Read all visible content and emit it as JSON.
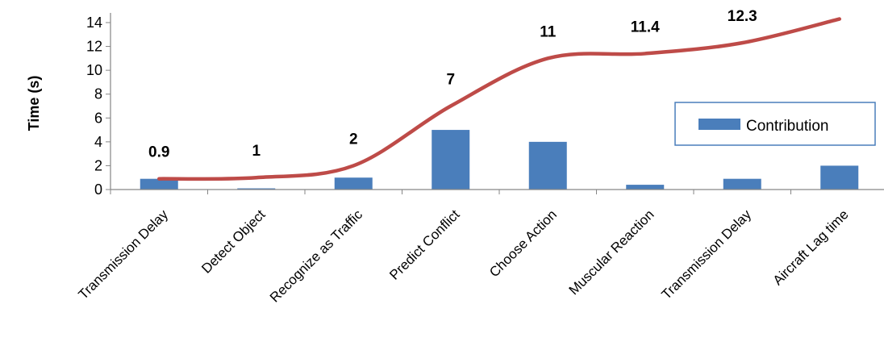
{
  "chart_data": {
    "type": "bar",
    "title": "",
    "xlabel": "",
    "ylabel": "Time (s)",
    "ylim": [
      0,
      14
    ],
    "yticks": [
      0,
      2,
      4,
      6,
      8,
      10,
      12,
      14
    ],
    "categories": [
      "Transmission Delay",
      "Detect Object",
      "Recognize as Traffic",
      "Predict Conflict",
      "Choose Action",
      "Muscular Reaction",
      "Transmission Delay",
      "Aircraft Lag time"
    ],
    "series": [
      {
        "name": "Contribution",
        "type": "bar",
        "color": "#4a7ebb",
        "values": [
          0.9,
          0.1,
          1,
          5,
          4,
          0.4,
          0.9,
          2
        ]
      },
      {
        "type": "line",
        "color": "#be4b48",
        "values": [
          0.9,
          1,
          2,
          7,
          11,
          11.4,
          12.3,
          14.3
        ],
        "data_labels": [
          "0.9",
          "1",
          "2",
          "7",
          "11",
          "11.4",
          "12.3",
          "14.3"
        ]
      }
    ],
    "legend": {
      "position": "right",
      "entries": [
        "Contribution"
      ]
    },
    "grid": {
      "horizontal": false,
      "vertical": false
    }
  }
}
